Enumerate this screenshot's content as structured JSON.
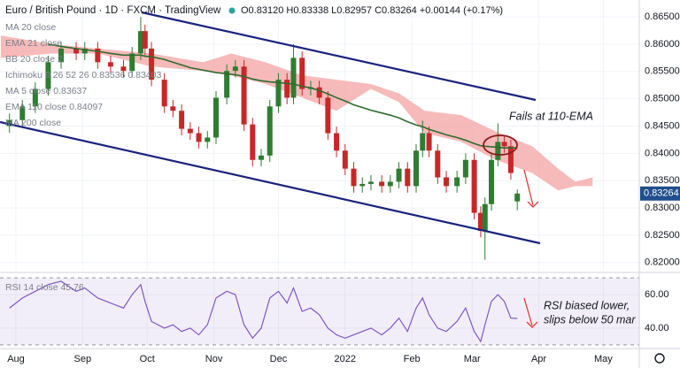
{
  "chart_data": {
    "type": "candlestick",
    "title": "Euro / British Pound · 1D · FXCM · TradingView",
    "ohlc_header": "O0.83120 H0.83338 L0.82957 C0.83264 +0.00144 (+0.17%)",
    "legend": [
      "MA 20 close",
      "EMA 21 close",
      "BB 20 close 2",
      "Ichimoku 9 26 52 26  0.83536  0.83403",
      "MA 5 close  0.83637",
      "EMA 110 close  0.84097",
      "MA 200 close"
    ],
    "up_color": "#2e7d32",
    "down_color": "#c62828",
    "x": [
      -3,
      3,
      9,
      15,
      21,
      28,
      32,
      38,
      44,
      50,
      54,
      58,
      60,
      63,
      69,
      73,
      77,
      81,
      85,
      89,
      93,
      98,
      102,
      106,
      110,
      114,
      118,
      122,
      126,
      129,
      133,
      137,
      141,
      145,
      149,
      153,
      157,
      161,
      165,
      170,
      174,
      178,
      182,
      186,
      189,
      192,
      196,
      200,
      205,
      209,
      213,
      216,
      218,
      221,
      224,
      227,
      230,
      233
    ],
    "open": [
      0.845,
      0.8461,
      0.8486,
      0.8518,
      0.8567,
      0.8592,
      0.8583,
      0.8592,
      0.8567,
      0.8559,
      0.8551,
      0.8583,
      0.8624,
      0.8592,
      0.8535,
      0.8486,
      0.8478,
      0.8445,
      0.8437,
      0.8421,
      0.8429,
      0.8502,
      0.8551,
      0.8559,
      0.8453,
      0.8388,
      0.8396,
      0.8486,
      0.8535,
      0.8502,
      0.8575,
      0.8518,
      0.8521,
      0.8502,
      0.8437,
      0.8405,
      0.8372,
      0.834,
      0.8344,
      0.8348,
      0.834,
      0.8348,
      0.8372,
      0.834,
      0.8405,
      0.8437,
      0.8405,
      0.8356,
      0.834,
      0.8356,
      0.8388,
      0.8291,
      0.8258,
      0.8307,
      0.8388,
      0.8421,
      0.8413,
      0.8312
    ],
    "high": [
      0.8473,
      0.8498,
      0.853,
      0.8579,
      0.8604,
      0.8604,
      0.8604,
      0.8604,
      0.8579,
      0.8571,
      0.8595,
      0.865,
      0.8636,
      0.8604,
      0.8547,
      0.8498,
      0.849,
      0.8457,
      0.8449,
      0.8441,
      0.8514,
      0.8563,
      0.8571,
      0.8571,
      0.8465,
      0.8408,
      0.8498,
      0.8547,
      0.8547,
      0.86,
      0.8587,
      0.8533,
      0.8533,
      0.8514,
      0.8449,
      0.8417,
      0.8384,
      0.8356,
      0.836,
      0.836,
      0.836,
      0.8384,
      0.8384,
      0.8417,
      0.846,
      0.8449,
      0.8417,
      0.8368,
      0.8368,
      0.84,
      0.84,
      0.8303,
      0.8319,
      0.84,
      0.8455,
      0.8433,
      0.8425,
      0.83338
    ],
    "low": [
      0.8438,
      0.8449,
      0.8474,
      0.8506,
      0.8555,
      0.8571,
      0.8571,
      0.8555,
      0.8547,
      0.8539,
      0.8539,
      0.8571,
      0.858,
      0.8523,
      0.8474,
      0.8466,
      0.8433,
      0.8425,
      0.8409,
      0.8409,
      0.8417,
      0.849,
      0.8539,
      0.8441,
      0.8376,
      0.8376,
      0.8384,
      0.8474,
      0.849,
      0.849,
      0.8506,
      0.8506,
      0.849,
      0.8425,
      0.8393,
      0.836,
      0.8328,
      0.8328,
      0.8332,
      0.8328,
      0.8328,
      0.8336,
      0.8328,
      0.8328,
      0.8393,
      0.8393,
      0.8344,
      0.8328,
      0.8328,
      0.8344,
      0.8279,
      0.8246,
      0.8205,
      0.8295,
      0.8376,
      0.8401,
      0.8352,
      0.82957
    ],
    "close": [
      0.8461,
      0.8486,
      0.8518,
      0.8567,
      0.8592,
      0.8583,
      0.8592,
      0.8567,
      0.8559,
      0.8551,
      0.8583,
      0.8624,
      0.8592,
      0.8535,
      0.8486,
      0.8478,
      0.8445,
      0.8437,
      0.8421,
      0.8429,
      0.8502,
      0.8551,
      0.8559,
      0.8453,
      0.8388,
      0.8396,
      0.8486,
      0.8535,
      0.8502,
      0.8575,
      0.8518,
      0.8521,
      0.8502,
      0.8437,
      0.8405,
      0.8372,
      0.834,
      0.8344,
      0.8348,
      0.834,
      0.8348,
      0.8372,
      0.834,
      0.8405,
      0.8437,
      0.8405,
      0.8356,
      0.834,
      0.8356,
      0.8388,
      0.8291,
      0.8258,
      0.8307,
      0.8388,
      0.8421,
      0.8413,
      0.8364,
      0.83264
    ],
    "ema": {
      "color": "#2e6b2e",
      "values": [
        null,
        null,
        null,
        0.86,
        0.8596,
        0.8592,
        0.859,
        0.8587,
        0.8583,
        0.858,
        0.858,
        0.858,
        0.8578,
        0.8577,
        0.8572,
        0.8567,
        0.8562,
        0.8557,
        0.8554,
        0.8551,
        0.8548,
        0.8546,
        0.8544,
        0.8541,
        0.8536,
        0.8533,
        0.8531,
        0.853,
        0.8528,
        0.8527,
        0.8523,
        0.852,
        0.8515,
        0.8509,
        0.8502,
        0.8496,
        0.8489,
        0.8484,
        0.8479,
        0.8474,
        0.847,
        0.8465,
        0.8458,
        0.8452,
        0.8449,
        0.8444,
        0.8439,
        0.8434,
        0.8429,
        0.8424,
        0.8418,
        0.8414,
        0.8413,
        0.8412,
        0.8411,
        0.841,
        0.841,
        0.841
      ]
    },
    "cloud": {
      "color": "#f4a3a3",
      "x": [
        -7,
        17,
        38,
        63,
        87,
        100,
        116,
        133,
        149,
        165,
        178,
        190,
        207,
        223,
        240,
        252,
        260,
        268
      ],
      "upper": [
        0.8616,
        0.86,
        0.8592,
        0.8583,
        0.8567,
        0.8583,
        0.8567,
        0.8543,
        0.8535,
        0.8527,
        0.851,
        0.8478,
        0.847,
        0.844,
        0.8413,
        0.8372,
        0.8348,
        0.8356
      ],
      "lower": [
        0.8575,
        0.8583,
        0.8583,
        0.8559,
        0.8551,
        0.8543,
        0.8527,
        0.8502,
        0.8478,
        0.8518,
        0.8494,
        0.8437,
        0.8421,
        0.8388,
        0.8364,
        0.8332,
        0.834,
        0.834
      ]
    },
    "xlim": [
      -7.4,
      289.7
    ],
    "xticks": [
      {
        "value": 0,
        "label": "Aug"
      },
      {
        "value": 31,
        "label": "Sep"
      },
      {
        "value": 61,
        "label": "Oct"
      },
      {
        "value": 92,
        "label": "Nov"
      },
      {
        "value": 122,
        "label": "Dec"
      },
      {
        "value": 153,
        "label": "2022"
      },
      {
        "value": 184,
        "label": "Feb"
      },
      {
        "value": 212,
        "label": "Mar"
      },
      {
        "value": 243,
        "label": "Apr"
      },
      {
        "value": 273,
        "label": "May"
      }
    ],
    "ylim": [
      0.8185,
      0.8681
    ],
    "yticks": [
      {
        "value": 0.865,
        "label": "0.86500"
      },
      {
        "value": 0.86,
        "label": "0.86000"
      },
      {
        "value": 0.855,
        "label": "0.85500"
      },
      {
        "value": 0.85,
        "label": "0.85000"
      },
      {
        "value": 0.845,
        "label": "0.84500"
      },
      {
        "value": 0.84,
        "label": "0.84000"
      },
      {
        "value": 0.835,
        "label": "0.83500"
      },
      {
        "value": 0.83,
        "label": "0.83000"
      },
      {
        "value": 0.825,
        "label": "0.82500"
      },
      {
        "value": 0.82,
        "label": "0.82000"
      }
    ],
    "grid": true,
    "rsi": {
      "name": "RSI 14 close 45.76",
      "color": "#7e57c2",
      "values": [
        52,
        58,
        62,
        66,
        68,
        62,
        64,
        58,
        55,
        52,
        60,
        66,
        56,
        44,
        40,
        42,
        38,
        40,
        36,
        42,
        58,
        62,
        60,
        42,
        34,
        40,
        58,
        62,
        55,
        64,
        50,
        52,
        48,
        40,
        36,
        34,
        36,
        38,
        40,
        36,
        40,
        46,
        38,
        52,
        58,
        48,
        40,
        38,
        44,
        52,
        38,
        32,
        42,
        56,
        60,
        56,
        46,
        45.76
      ],
      "ylim": [
        27.8,
        72.2
      ],
      "yticks": [
        {
          "value": 60,
          "label": "60.00"
        },
        {
          "value": 40,
          "label": "40.00"
        }
      ],
      "band": [
        70,
        30
      ]
    },
    "annotations": [
      "Fails at 110-EMA",
      "RSI biased lower,",
      "slips below 50 mar"
    ]
  }
}
